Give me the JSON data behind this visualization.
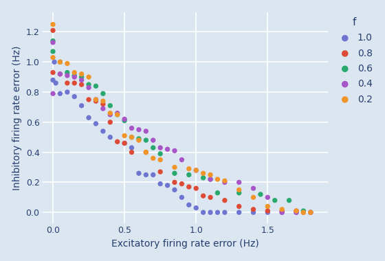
{
  "series": {
    "1.0": {
      "color": "#6e75d0",
      "x": [
        0.0,
        0.01,
        0.02,
        0.05,
        0.1,
        0.15,
        0.2,
        0.25,
        0.3,
        0.35,
        0.4,
        0.5,
        0.55,
        0.6,
        0.65,
        0.7,
        0.75,
        0.8,
        0.85,
        0.9,
        0.95,
        1.0,
        1.05,
        1.1,
        1.15,
        1.2,
        1.3,
        1.4,
        1.5,
        1.6,
        1.7,
        1.8
      ],
      "y": [
        0.88,
        1.0,
        0.86,
        0.79,
        0.8,
        0.77,
        0.71,
        0.63,
        0.59,
        0.54,
        0.5,
        0.46,
        0.43,
        0.26,
        0.25,
        0.25,
        0.19,
        0.18,
        0.15,
        0.1,
        0.05,
        0.03,
        0.0,
        0.0,
        0.0,
        0.0,
        0.0,
        0.0,
        0.0,
        0.0,
        0.0,
        0.0
      ]
    },
    "0.8": {
      "color": "#dd4a35",
      "x": [
        0.0,
        0.0,
        0.05,
        0.1,
        0.15,
        0.2,
        0.25,
        0.3,
        0.35,
        0.4,
        0.45,
        0.5,
        0.55,
        0.65,
        0.75,
        0.85,
        0.9,
        0.95,
        1.0,
        1.05,
        1.1,
        1.2,
        1.3,
        1.4,
        1.5,
        1.6,
        1.7,
        1.75,
        1.8
      ],
      "y": [
        0.93,
        1.21,
        0.92,
        0.86,
        0.86,
        0.85,
        0.75,
        0.74,
        0.72,
        0.6,
        0.47,
        0.46,
        0.4,
        0.4,
        0.27,
        0.2,
        0.19,
        0.17,
        0.16,
        0.11,
        0.1,
        0.08,
        0.04,
        0.02,
        0.01,
        0.01,
        0.01,
        0.0,
        0.0
      ]
    },
    "0.6": {
      "color": "#29a86e",
      "x": [
        0.0,
        0.0,
        0.05,
        0.1,
        0.15,
        0.2,
        0.25,
        0.3,
        0.35,
        0.4,
        0.45,
        0.5,
        0.55,
        0.6,
        0.65,
        0.7,
        0.75,
        0.85,
        0.95,
        1.05,
        1.1,
        1.15,
        1.3,
        1.45,
        1.55,
        1.65,
        1.75
      ],
      "y": [
        1.07,
        1.14,
        1.0,
        0.93,
        0.91,
        0.9,
        0.85,
        0.84,
        0.79,
        0.71,
        0.65,
        0.61,
        0.5,
        0.49,
        0.48,
        0.43,
        0.39,
        0.26,
        0.25,
        0.23,
        0.22,
        0.13,
        0.13,
        0.12,
        0.08,
        0.08,
        0.01
      ]
    },
    "0.4": {
      "color": "#a855c8",
      "x": [
        0.0,
        0.0,
        0.05,
        0.1,
        0.15,
        0.2,
        0.25,
        0.3,
        0.35,
        0.4,
        0.45,
        0.5,
        0.55,
        0.6,
        0.65,
        0.7,
        0.75,
        0.8,
        0.85,
        0.9,
        1.0,
        1.1,
        1.2,
        1.3,
        1.4,
        1.5,
        1.6,
        1.7,
        1.8
      ],
      "y": [
        0.79,
        1.13,
        0.92,
        0.91,
        0.9,
        0.88,
        0.83,
        0.75,
        0.69,
        0.65,
        0.66,
        0.62,
        0.56,
        0.55,
        0.54,
        0.48,
        0.43,
        0.42,
        0.41,
        0.35,
        0.28,
        0.22,
        0.2,
        0.2,
        0.16,
        0.1,
        0.0,
        0.0,
        0.0
      ]
    },
    "0.2": {
      "color": "#f0952a",
      "x": [
        0.0,
        0.0,
        0.05,
        0.1,
        0.15,
        0.2,
        0.25,
        0.3,
        0.35,
        0.4,
        0.45,
        0.5,
        0.55,
        0.6,
        0.65,
        0.7,
        0.75,
        0.85,
        0.95,
        1.0,
        1.05,
        1.1,
        1.15,
        1.2,
        1.3,
        1.4,
        1.5,
        1.6,
        1.7,
        1.75,
        1.8
      ],
      "y": [
        1.03,
        1.25,
        1.0,
        0.99,
        0.93,
        0.92,
        0.9,
        0.75,
        0.74,
        0.66,
        0.65,
        0.51,
        0.5,
        0.48,
        0.4,
        0.36,
        0.35,
        0.3,
        0.29,
        0.28,
        0.26,
        0.25,
        0.22,
        0.21,
        0.15,
        0.1,
        0.04,
        0.02,
        0.01,
        0.0,
        0.0
      ]
    }
  },
  "xlabel": "Excitatory firing rate error (Hz)",
  "ylabel": "Inhibitory firing rate error (Hz)",
  "legend_title": "f",
  "legend_order": [
    "1.0",
    "0.8",
    "0.6",
    "0.4",
    "0.2"
  ],
  "plot_bg_color": "#dce6f1",
  "fig_bg_color": "#dce6f1",
  "xlim": [
    -0.07,
    1.92
  ],
  "ylim": [
    -0.07,
    1.33
  ],
  "xticks": [
    0.0,
    0.5,
    1.0,
    1.5
  ],
  "yticks": [
    0.0,
    0.2,
    0.4,
    0.6,
    0.8,
    1.0,
    1.2
  ],
  "marker_size": 28,
  "label_fontsize": 10,
  "tick_fontsize": 9,
  "legend_fontsize": 10,
  "legend_title_fontsize": 11
}
